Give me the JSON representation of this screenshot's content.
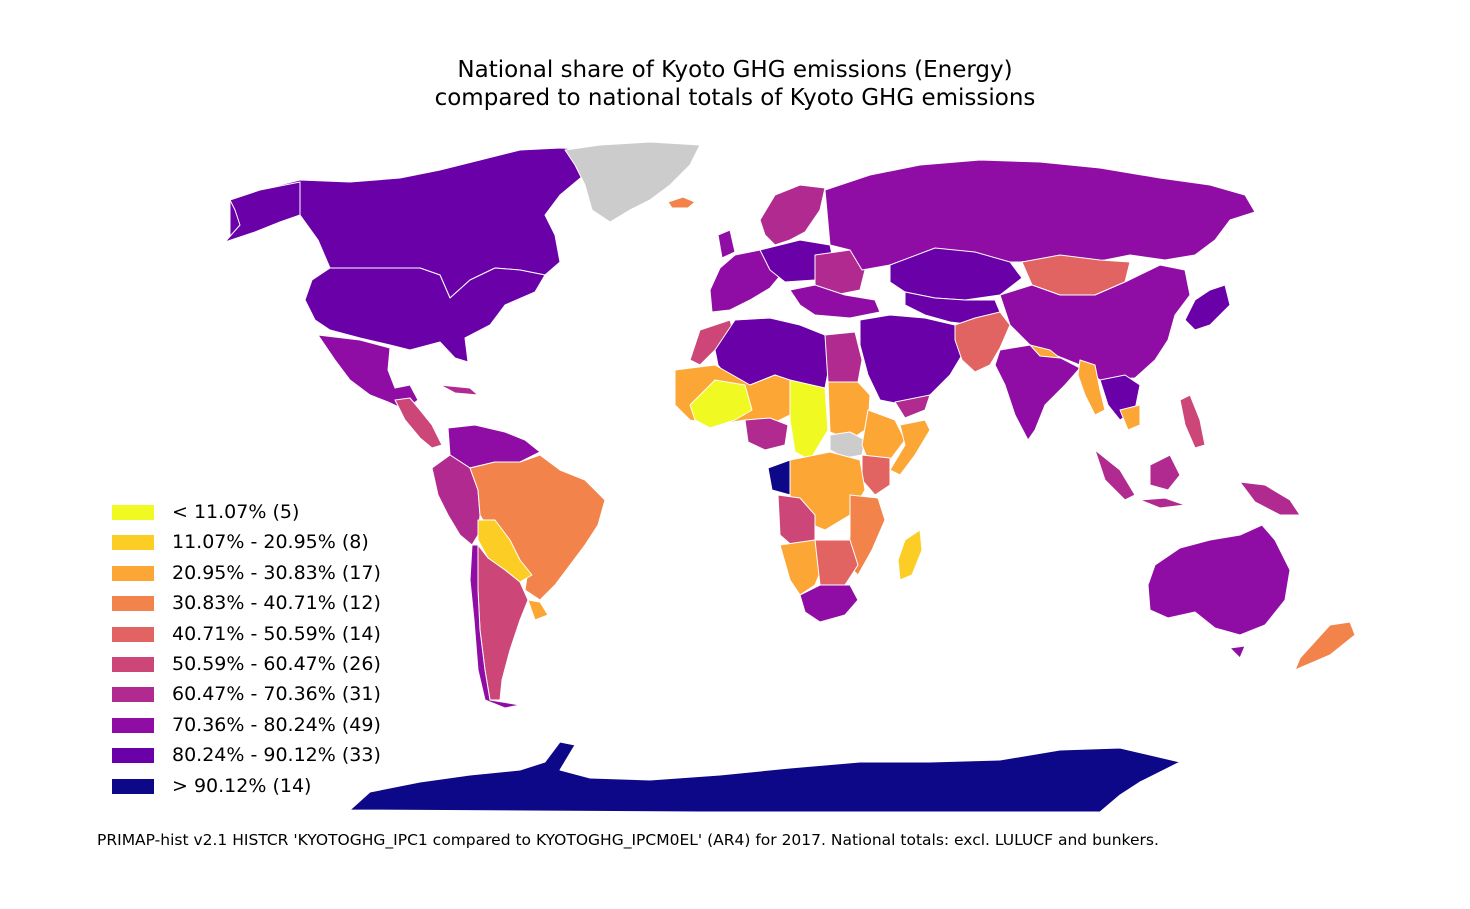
{
  "title": {
    "line1": "National share of Kyoto GHG emissions (Energy)",
    "line2": "compared to national totals of Kyoto GHG emissions"
  },
  "legend": [
    {
      "label": "< 11.07% (5)",
      "color": "#f0f921"
    },
    {
      "label": "11.07% - 20.95% (8)",
      "color": "#fcce25"
    },
    {
      "label": "20.95% - 30.83% (17)",
      "color": "#fca636"
    },
    {
      "label": "30.83% - 40.71% (12)",
      "color": "#f2844b"
    },
    {
      "label": "40.71% - 50.59% (14)",
      "color": "#e16462"
    },
    {
      "label": "50.59% - 60.47% (26)",
      "color": "#cc4778"
    },
    {
      "label": "60.47% - 70.36% (31)",
      "color": "#b12a90"
    },
    {
      "label": "70.36% - 80.24% (49)",
      "color": "#8f0da4"
    },
    {
      "label": "80.24% - 90.12% (33)",
      "color": "#6a00a8"
    },
    {
      "label": "> 90.12% (14)",
      "color": "#0d0887"
    }
  ],
  "no_data_color": "#cccccc",
  "caption": "PRIMAP-hist v2.1 HISTCR 'KYOTOGHG_IPC1 compared to KYOTOGHG_IPCM0EL' (AR4) for 2017. National totals: excl. LULUCF and bunkers."
}
